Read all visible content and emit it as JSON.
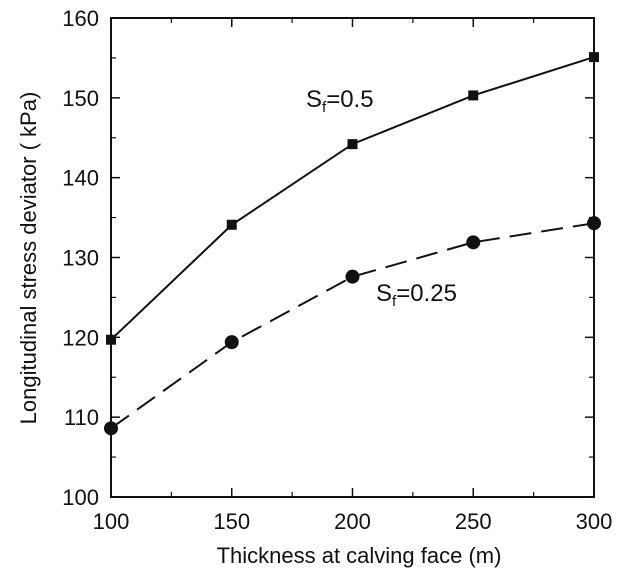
{
  "chart_data": {
    "type": "line",
    "xlabel": "Thickness at calving face (m)",
    "ylabel": "Longitudinal stress deviator ( kPa)",
    "xlim": [
      100,
      300
    ],
    "ylim": [
      100,
      160
    ],
    "xticks": [
      100,
      150,
      200,
      250,
      300
    ],
    "yticks": [
      100,
      110,
      120,
      130,
      140,
      150,
      160
    ],
    "grid": false,
    "series": [
      {
        "name": "Sf=0.5",
        "label_main": "S",
        "label_sub": "f",
        "label_rest": "=0.5",
        "marker": "square",
        "line": "solid",
        "x": [
          100,
          150,
          200,
          250,
          300
        ],
        "y": [
          119.7,
          134.1,
          144.2,
          150.3,
          155.1
        ]
      },
      {
        "name": "Sf=0.25",
        "label_main": "S",
        "label_sub": "f",
        "label_rest": "=0.25",
        "marker": "circle",
        "line": "dashed",
        "x": [
          100,
          150,
          200,
          250,
          300
        ],
        "y": [
          108.6,
          119.4,
          127.6,
          131.9,
          134.3
        ]
      }
    ]
  }
}
